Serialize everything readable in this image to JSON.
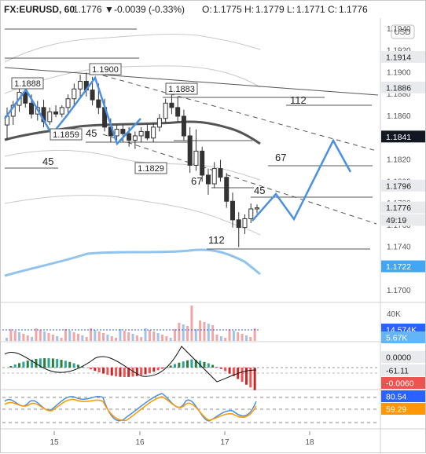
{
  "header": {
    "symbol": "FX:EURUSD, 60",
    "last": "1.1776",
    "arrow": "▼",
    "change": "-0.0039 (-0.33%)",
    "o_label": "O:",
    "o": "1.1775",
    "h_label": "H:",
    "h": "1.1779",
    "l_label": "L:",
    "l": "1.1771",
    "c_label": "C:",
    "c": "1.1776"
  },
  "currency_button": "USD",
  "colors": {
    "up": "#26a69a",
    "down": "#ef5350",
    "candle": "#333333",
    "ma_dark": "#555555",
    "ma_light": "#90c4ec",
    "band": "#c8c8c8",
    "projection": "#4a90e2",
    "tag_dark": "#131722",
    "tag_blue": "#2962ff",
    "tag_light_blue": "#64b5f6",
    "tag_red": "#ef5350",
    "tag_orange": "#ff9800"
  },
  "chart_data": [
    {
      "type": "candlestick",
      "title": "",
      "x_ticks": [
        "15",
        "16",
        "17",
        "18"
      ],
      "y_ticks": [
        "1.1940",
        "1.1920",
        "1.1900",
        "1.1880",
        "1.1860",
        "1.1840",
        "1.1820",
        "1.1800",
        "1.1780",
        "1.1760",
        "1.1740",
        "1.1720",
        "1.1700"
      ],
      "ylim": [
        1.169,
        1.195
      ],
      "ohlc": [
        [
          1.1852,
          1.1868,
          1.1838,
          1.186
        ],
        [
          1.186,
          1.1874,
          1.1852,
          1.187
        ],
        [
          1.187,
          1.1886,
          1.1864,
          1.1882
        ],
        [
          1.1882,
          1.1889,
          1.1868,
          1.1872
        ],
        [
          1.1872,
          1.188,
          1.1858,
          1.1862
        ],
        [
          1.1862,
          1.1874,
          1.1856,
          1.1868
        ],
        [
          1.1868,
          1.1875,
          1.185,
          1.1855
        ],
        [
          1.1855,
          1.1868,
          1.1852,
          1.1864
        ],
        [
          1.1864,
          1.187,
          1.1859,
          1.1862
        ],
        [
          1.1862,
          1.187,
          1.1859,
          1.1868
        ],
        [
          1.1868,
          1.188,
          1.1862,
          1.1876
        ],
        [
          1.1876,
          1.189,
          1.187,
          1.1885
        ],
        [
          1.1885,
          1.1898,
          1.1878,
          1.1892
        ],
        [
          1.1892,
          1.19,
          1.1878,
          1.1884
        ],
        [
          1.1884,
          1.1896,
          1.187,
          1.1875
        ],
        [
          1.1875,
          1.189,
          1.1862,
          1.1868
        ],
        [
          1.1868,
          1.1876,
          1.1846,
          1.185
        ],
        [
          1.185,
          1.1858,
          1.1836,
          1.1842
        ],
        [
          1.1842,
          1.1852,
          1.1838,
          1.1848
        ],
        [
          1.1848,
          1.1852,
          1.1838,
          1.1844
        ],
        [
          1.1844,
          1.185,
          1.1832,
          1.1838
        ],
        [
          1.1838,
          1.1846,
          1.183,
          1.1842
        ],
        [
          1.1842,
          1.185,
          1.1836,
          1.1846
        ],
        [
          1.1846,
          1.1852,
          1.1838,
          1.184
        ],
        [
          1.184,
          1.1854,
          1.1836,
          1.185
        ],
        [
          1.185,
          1.1862,
          1.1846,
          1.1858
        ],
        [
          1.1858,
          1.1876,
          1.1854,
          1.1872
        ],
        [
          1.1872,
          1.1883,
          1.1862,
          1.1868
        ],
        [
          1.1868,
          1.1878,
          1.1855,
          1.186
        ],
        [
          1.186,
          1.1866,
          1.1838,
          1.1842
        ],
        [
          1.1842,
          1.185,
          1.1808,
          1.1815
        ],
        [
          1.1815,
          1.1848,
          1.181,
          1.1828
        ],
        [
          1.1828,
          1.1832,
          1.18,
          1.1806
        ],
        [
          1.1806,
          1.1812,
          1.1788,
          1.1798
        ],
        [
          1.1798,
          1.1818,
          1.1794,
          1.1812
        ],
        [
          1.1812,
          1.182,
          1.18,
          1.1804
        ],
        [
          1.1804,
          1.1808,
          1.1776,
          1.1782
        ],
        [
          1.1782,
          1.179,
          1.1758,
          1.1765
        ],
        [
          1.1765,
          1.1772,
          1.174,
          1.1758
        ],
        [
          1.1758,
          1.177,
          1.1752,
          1.1766
        ],
        [
          1.1766,
          1.178,
          1.1762,
          1.1775
        ],
        [
          1.1775,
          1.1779,
          1.1771,
          1.1776
        ]
      ],
      "price_tags": [
        {
          "value": "1.1914",
          "style": "dark"
        },
        {
          "value": "1.1886",
          "style": "dark"
        },
        {
          "value": "1.1841",
          "style": "dark"
        },
        {
          "value": "1.1796",
          "style": "dark"
        },
        {
          "value": "1.1776",
          "style": "dark"
        },
        {
          "value": "49:19",
          "style": "dark"
        },
        {
          "value": "1.1722",
          "style": "blue"
        }
      ],
      "swing_labels": [
        "1.1900",
        "1.1888",
        "1.1883",
        "1.1859",
        "1.1829"
      ],
      "level_annotations": [
        "112",
        "67",
        "45",
        "45",
        "67",
        "45",
        "112"
      ]
    },
    {
      "type": "bar",
      "title": "",
      "y_ticks": [
        "40K"
      ],
      "price_tags": [
        {
          "value": "14.574K",
          "style": "blue"
        },
        {
          "value": "5.67K",
          "style": "light_blue"
        }
      ]
    },
    {
      "type": "histogram",
      "title": "",
      "price_tags": [
        {
          "value": "0.0000",
          "style": "dark"
        },
        {
          "value": "-61.11",
          "style": "dark"
        },
        {
          "value": "-0.0060",
          "style": "red"
        }
      ]
    },
    {
      "type": "line",
      "title": "",
      "price_tags": [
        {
          "value": "80.54",
          "style": "blue"
        },
        {
          "value": "59.29",
          "style": "orange"
        }
      ]
    }
  ]
}
